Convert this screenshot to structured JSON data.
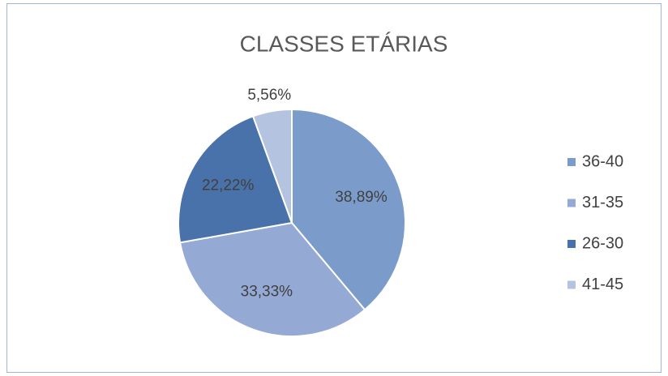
{
  "chart_data": {
    "type": "pie",
    "title": "CLASSES ETÁRIAS",
    "categories": [
      "36-40",
      "31-35",
      "26-30",
      "41-45"
    ],
    "values": [
      38.89,
      33.33,
      22.22,
      5.56
    ],
    "value_labels": [
      "38,89%",
      "33,33%",
      "22,22%",
      "5,56%"
    ],
    "colors": [
      "#7b9ccb",
      "#94a9d3",
      "#4a72aa",
      "#b4c3e0"
    ],
    "legend": "right"
  }
}
